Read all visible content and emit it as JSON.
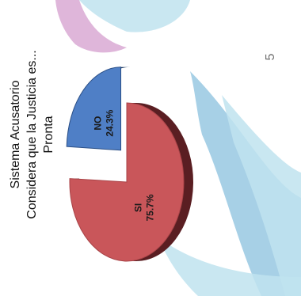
{
  "page_number": "5",
  "colors": {
    "si": "#c9565a",
    "si_side": "#5a1e22",
    "no": "#4f7fc6",
    "no_side": "#1e3a62",
    "background_swirl_light": "#bfe3ee",
    "background_swirl_blue": "#98c8e2",
    "background_swirl_pink": "#d9a9d3"
  },
  "chart_data": {
    "type": "pie",
    "title_lines": [
      "Sistema Acusatorio",
      "Considera que la Justicia es...",
      "Pronta"
    ],
    "slices": [
      {
        "name": "SI",
        "value": 75.7,
        "label": "75.7%",
        "color": "#c9565a"
      },
      {
        "name": "NO",
        "value": 24.3,
        "label": "24.3%",
        "color": "#4f7fc6"
      }
    ],
    "legend": "none",
    "style": "3d-exploded"
  }
}
